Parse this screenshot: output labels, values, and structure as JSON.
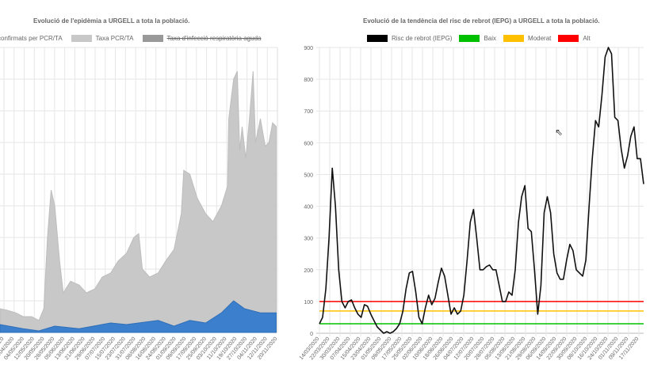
{
  "left": {
    "title": "Evolució de l'epidèmia a URGELL a tota la població.",
    "legend": [
      {
        "label": "confirmats per PCR/TA",
        "color": "#3c7fcc",
        "hidden": false
      },
      {
        "label": "Taxa PCR/TA",
        "color": "#c8c8c8",
        "hidden": false
      },
      {
        "label": "Taxa d'infecció respiratòria aguda",
        "color": "#999999",
        "hidden": true
      }
    ],
    "xlabels": [
      "/2020",
      "26/04/2020",
      "04/05/2020",
      "12/05/2020",
      "20/05/2020",
      "28/05/2020",
      "05/06/2020",
      "13/06/2020",
      "21/06/2020",
      "29/06/2020",
      "07/07/2020",
      "15/07/2020",
      "23/07/2020",
      "31/07/2020",
      "08/08/2020",
      "16/08/2020",
      "24/08/2020",
      "01/09/2020",
      "09/09/2020",
      "17/09/2020",
      "25/09/2020",
      "03/10/2020",
      "11/10/2020",
      "19/10/2020",
      "27/10/2020",
      "04/11/2020",
      "12/11/2020",
      "20/11/2020"
    ]
  },
  "right": {
    "title": "Evolució de la tendència del risc de rebrot (IEPG) a URGELL a tota la població.",
    "legend": [
      {
        "label": "Risc de rebrot (IEPG)",
        "color": "#000000"
      },
      {
        "label": "Baix",
        "color": "#00c000"
      },
      {
        "label": "Moderat",
        "color": "#ffc000"
      },
      {
        "label": "Alt",
        "color": "#ff0000"
      }
    ],
    "yticks": [
      "0",
      "100",
      "200",
      "300",
      "400",
      "500",
      "600",
      "700",
      "800",
      "900"
    ],
    "xlabels": [
      "14/03/2020",
      "22/03/2020",
      "30/03/2020",
      "07/04/2020",
      "15/04/2020",
      "23/04/2020",
      "01/05/2020",
      "09/05/2020",
      "17/05/2020",
      "25/05/2020",
      "02/06/2020",
      "10/06/2020",
      "18/06/2020",
      "26/06/2020",
      "04/07/2020",
      "12/07/2020",
      "20/07/2020",
      "28/07/2020",
      "05/08/2020",
      "13/08/2020",
      "21/08/2020",
      "29/08/2020",
      "06/09/2020",
      "14/09/2020",
      "22/09/2020",
      "30/09/2020",
      "08/10/2020",
      "16/10/2020",
      "24/10/2020",
      "01/11/2020",
      "09/11/2020",
      "17/11/2020"
    ]
  },
  "chart_data": [
    {
      "type": "area",
      "title": "Evolució de l'epidèmia a URGELL a tota la població.",
      "ylim": [
        0,
        900
      ],
      "xlim_days": [
        0,
        228
      ],
      "series": [
        {
          "name": "Taxa PCR/TA",
          "color": "#c8c8c8",
          "days": [
            0,
            6,
            13,
            19,
            26,
            32,
            36,
            39,
            42,
            45,
            49,
            52,
            58,
            65,
            71,
            78,
            84,
            91,
            97,
            104,
            110,
            114,
            117,
            123,
            130,
            136,
            143,
            149,
            151,
            156,
            162,
            169,
            175,
            182,
            187,
            188,
            192,
            195,
            197,
            199,
            202,
            205,
            208,
            210,
            214,
            218,
            221,
            224,
            227
          ],
          "values": [
            75,
            70,
            62,
            50,
            50,
            38,
            75,
            300,
            450,
            400,
            225,
            125,
            162,
            150,
            125,
            138,
            175,
            188,
            225,
            250,
            300,
            312,
            200,
            175,
            188,
            225,
            262,
            375,
            512,
            500,
            425,
            375,
            350,
            400,
            462,
            675,
            800,
            825,
            575,
            650,
            550,
            675,
            825,
            600,
            675,
            588,
            600,
            662,
            650
          ]
        },
        {
          "name": "confirmats per PCR/TA",
          "color": "#3c7fcc",
          "days": [
            0,
            19,
            32,
            45,
            65,
            91,
            104,
            130,
            143,
            156,
            169,
            182,
            192,
            201,
            214,
            227
          ],
          "values": [
            25,
            12,
            5,
            20,
            12,
            30,
            25,
            38,
            20,
            38,
            30,
            62,
            100,
            75,
            62,
            62
          ]
        }
      ]
    },
    {
      "type": "line",
      "title": "Evolució de la tendència del risc de rebrot (IEPG) a URGELL a tota la població.",
      "ylim": [
        0,
        900
      ],
      "day_step": 2.5,
      "start": "14/03/2020",
      "series": [
        {
          "name": "Risc de rebrot (IEPG)",
          "color": "#000000",
          "values": [
            30,
            50,
            140,
            300,
            520,
            400,
            200,
            100,
            80,
            100,
            105,
            80,
            60,
            50,
            90,
            85,
            60,
            40,
            20,
            10,
            0,
            5,
            0,
            5,
            15,
            30,
            70,
            140,
            190,
            195,
            130,
            50,
            30,
            80,
            120,
            90,
            110,
            160,
            205,
            180,
            120,
            60,
            80,
            60,
            70,
            120,
            230,
            350,
            390,
            300,
            200,
            200,
            210,
            215,
            200,
            200,
            150,
            100,
            100,
            130,
            120,
            200,
            350,
            430,
            465,
            330,
            320,
            200,
            60,
            150,
            380,
            430,
            380,
            250,
            190,
            170,
            170,
            230,
            280,
            260,
            200,
            190,
            180,
            230,
            400,
            550,
            670,
            650,
            750,
            870,
            900,
            880,
            680,
            670,
            580,
            520,
            560,
            620,
            650,
            550,
            550,
            470
          ]
        }
      ],
      "thresholds": [
        {
          "name": "Baix",
          "value": 30,
          "color": "#00c000"
        },
        {
          "name": "Moderat",
          "value": 70,
          "color": "#ffc000"
        },
        {
          "name": "Alt",
          "value": 100,
          "color": "#ff0000"
        }
      ]
    }
  ]
}
